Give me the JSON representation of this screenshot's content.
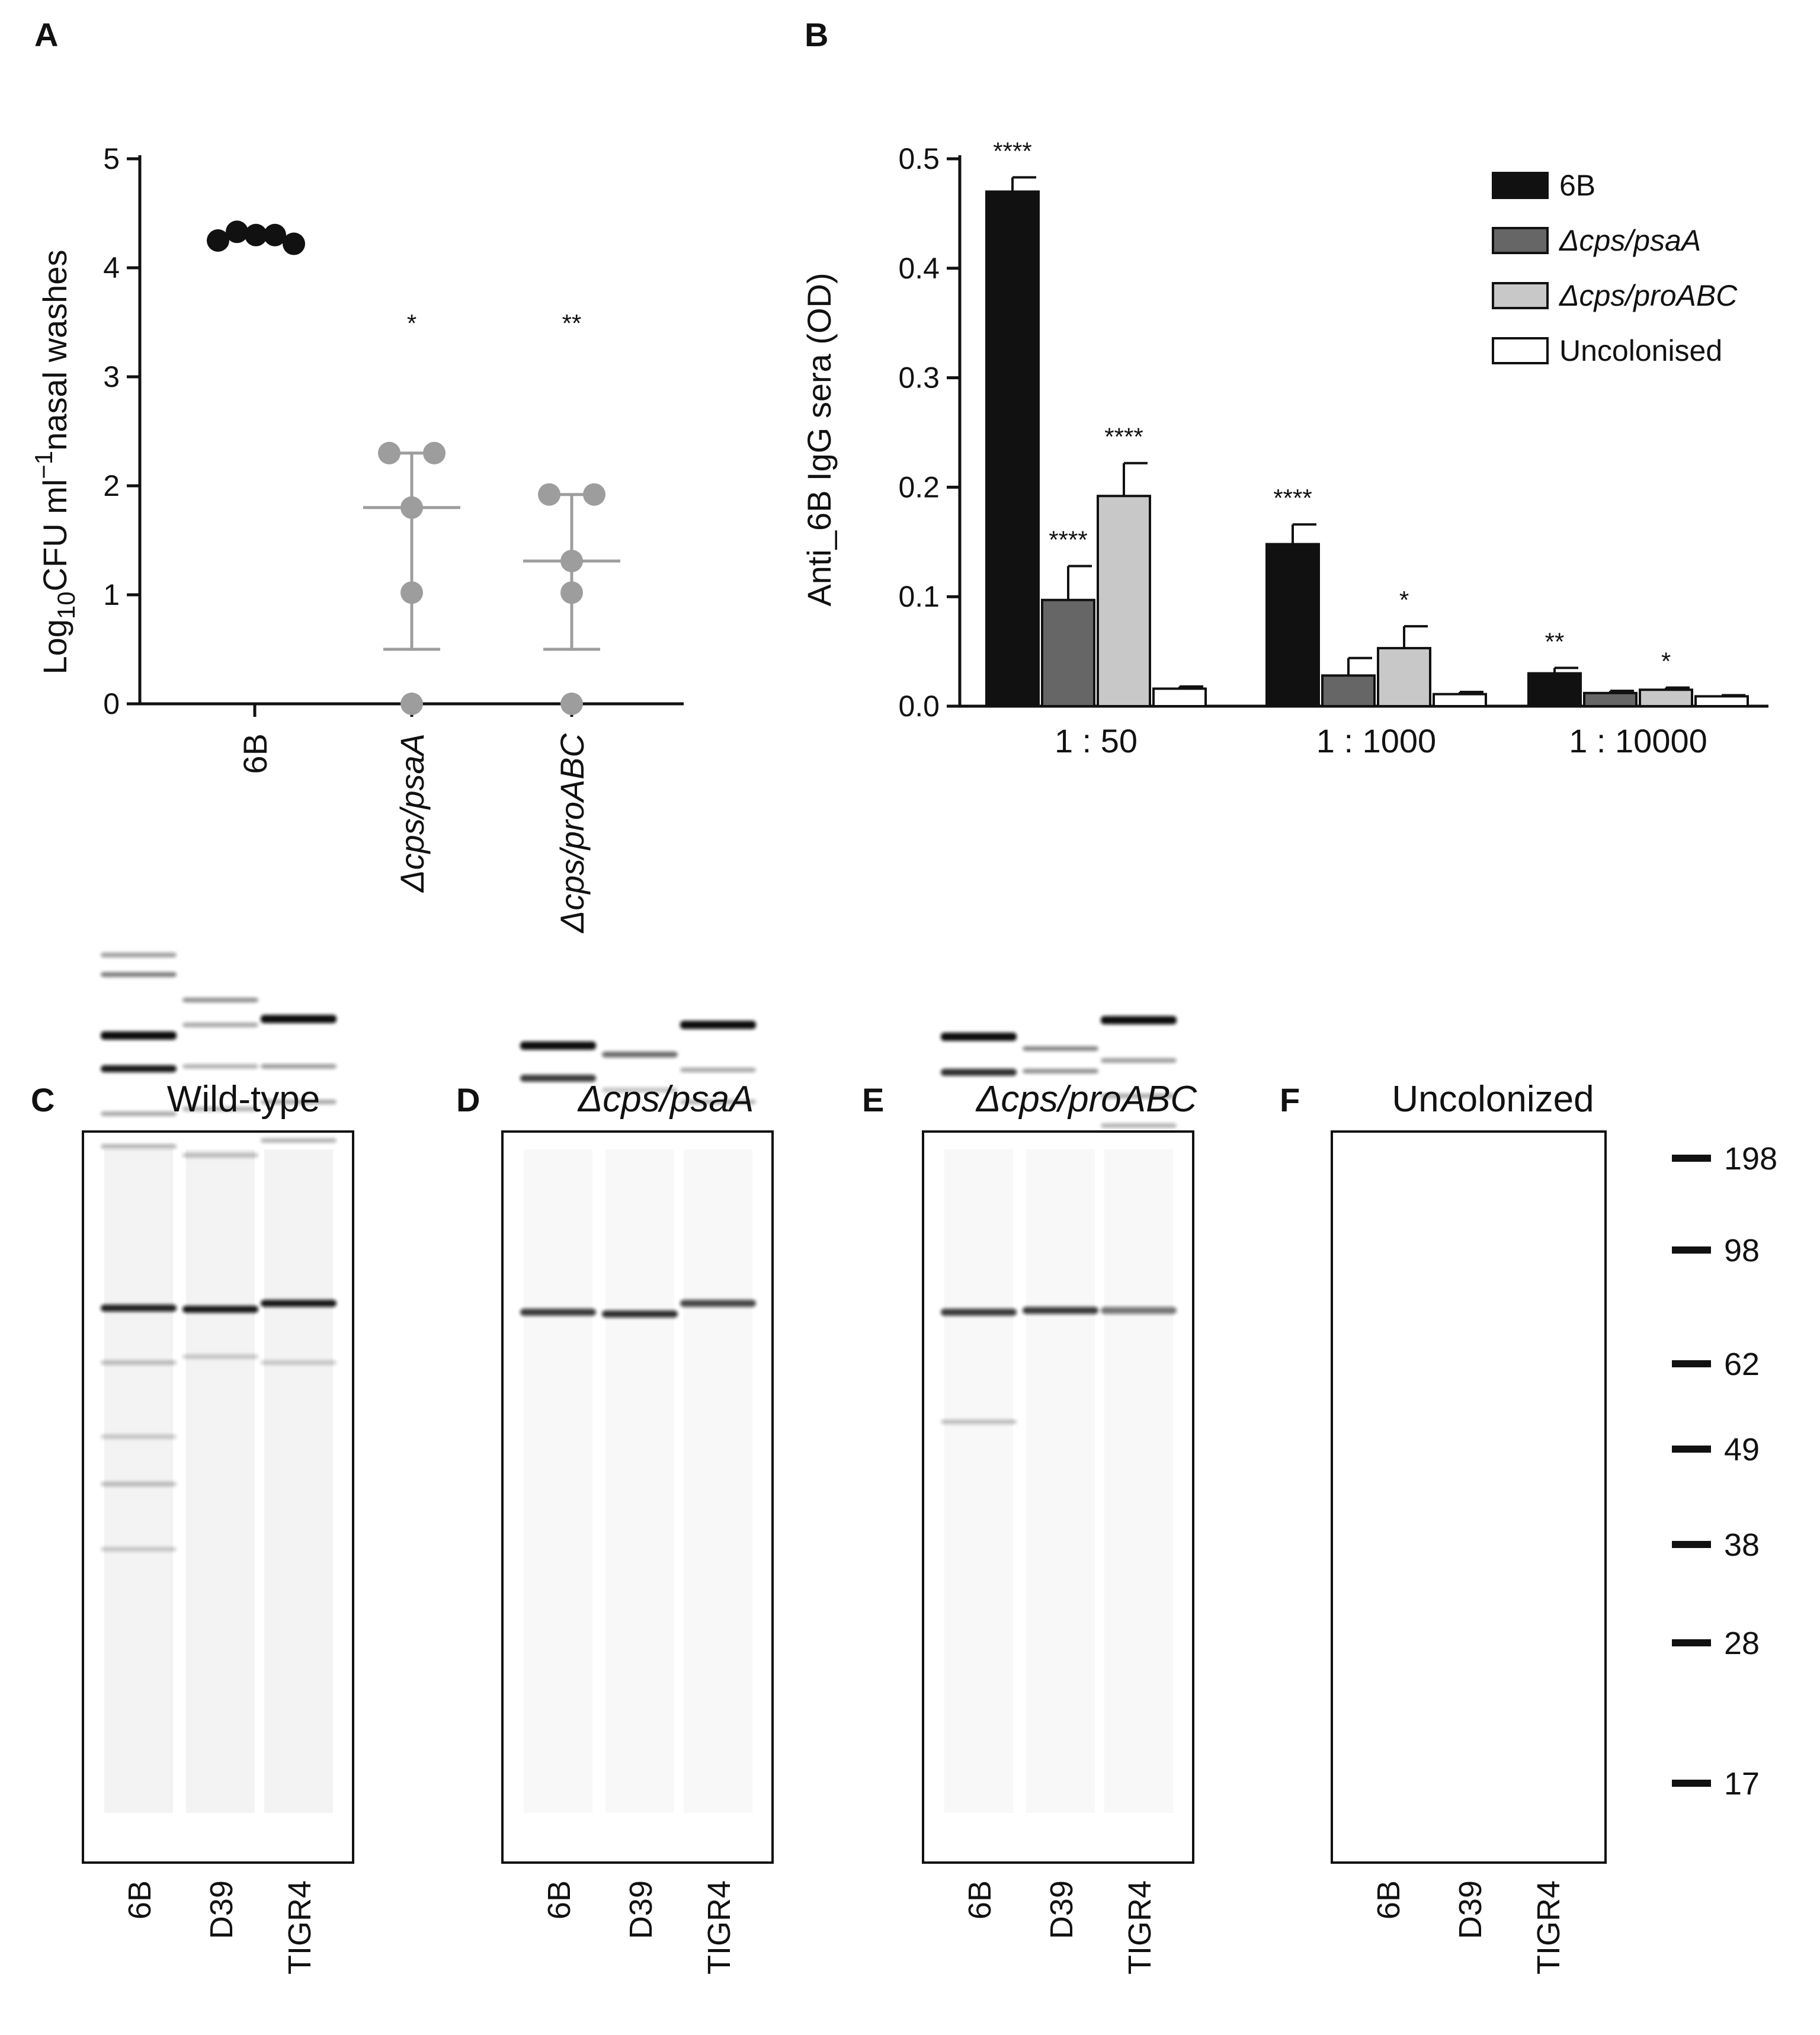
{
  "colors": {
    "wt": "#111111",
    "psaA": "#666666",
    "proABC": "#c8c8c8",
    "uncolonised": "#ffffff",
    "dots_wt": "#111111",
    "dots_mutant": "#9d9d9d",
    "axis": "#111111"
  },
  "chart_data": [
    {
      "panel": "A",
      "type": "scatter",
      "ylabel_parts": {
        "pre": "Log",
        "sub": "10",
        "mid": "CFU ml",
        "sup": "−1",
        "post": "nasal washes"
      },
      "ylim": [
        0,
        5
      ],
      "yticks": [
        "0",
        "1",
        "2",
        "3",
        "4",
        "5"
      ],
      "categories": [
        "6B",
        "Δcps/psaA",
        "Δcps/proABC"
      ],
      "category_italic": [
        false,
        true,
        true
      ],
      "groups": [
        {
          "name": "6B",
          "points": [
            4.25,
            4.33,
            4.3,
            4.3,
            4.22
          ],
          "mean": null,
          "sd_low": null,
          "sd_high": null,
          "significance": ""
        },
        {
          "name": "Δcps/psaA",
          "points": [
            2.3,
            2.3,
            1.8,
            1.02,
            0.0
          ],
          "mean": 1.8,
          "sd_low": 0.5,
          "sd_high": 2.3,
          "significance": "*"
        },
        {
          "name": "Δcps/proABC",
          "points": [
            1.92,
            1.92,
            1.31,
            1.02,
            0.0
          ],
          "mean": 1.31,
          "sd_low": 0.5,
          "sd_high": 1.92,
          "significance": "**"
        }
      ]
    },
    {
      "panel": "B",
      "type": "bar",
      "ylabel": "Anti_6B IgG sera (OD)",
      "ylim": [
        0,
        0.5
      ],
      "yticks": [
        "0.0",
        "0.1",
        "0.2",
        "0.3",
        "0.4",
        "0.5"
      ],
      "categories": [
        "1 : 50",
        "1 : 1000",
        "1 : 10000"
      ],
      "legend_placement": "top-right",
      "series": [
        {
          "name": "6B",
          "italic": false,
          "values": [
            0.47,
            0.148,
            0.03
          ],
          "errors": [
            0.013,
            0.018,
            0.005
          ],
          "significance": [
            "****",
            "****",
            "**"
          ]
        },
        {
          "name": "Δcps/psaA",
          "italic": true,
          "values": [
            0.097,
            0.028,
            0.012
          ],
          "errors": [
            0.031,
            0.016,
            0.002
          ],
          "significance": [
            "****",
            "",
            ""
          ]
        },
        {
          "name": "Δcps/proABC",
          "italic": true,
          "values": [
            0.192,
            0.053,
            0.015
          ],
          "errors": [
            0.03,
            0.02,
            0.002
          ],
          "significance": [
            "****",
            "*",
            "*"
          ]
        },
        {
          "name": "Uncolonised",
          "italic": false,
          "values": [
            0.016,
            0.011,
            0.009
          ],
          "errors": [
            0.002,
            0.002,
            0.001
          ],
          "significance": [
            "",
            "",
            ""
          ]
        }
      ]
    }
  ],
  "panel_labels": {
    "a": "A",
    "b": "B",
    "c": "C",
    "d": "D",
    "e": "E",
    "f": "F"
  },
  "blots": [
    {
      "letter": "C",
      "title": "Wild-type",
      "italic": false,
      "lanes": [
        "6B",
        "D39",
        "TIGR4"
      ],
      "blank": false
    },
    {
      "letter": "D",
      "title": "Δcps/psaA",
      "italic": true,
      "lanes": [
        "6B",
        "D39",
        "TIGR4"
      ],
      "blank": false
    },
    {
      "letter": "E",
      "title": "Δcps/proABC",
      "italic": true,
      "lanes": [
        "6B",
        "D39",
        "TIGR4"
      ],
      "blank": false
    },
    {
      "letter": "F",
      "title": "Uncolonized",
      "italic": false,
      "lanes": [
        "6B",
        "D39",
        "TIGR4"
      ],
      "blank": true
    }
  ],
  "markers": [
    "198",
    "98",
    "62",
    "49",
    "38",
    "28",
    "17"
  ]
}
